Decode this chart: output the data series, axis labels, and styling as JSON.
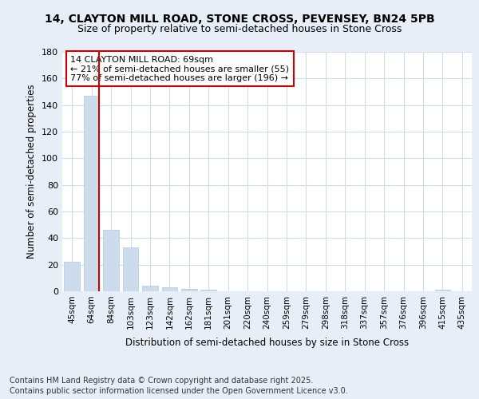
{
  "title_line1": "14, CLAYTON MILL ROAD, STONE CROSS, PEVENSEY, BN24 5PB",
  "title_line2": "Size of property relative to semi-detached houses in Stone Cross",
  "xlabel": "Distribution of semi-detached houses by size in Stone Cross",
  "ylabel": "Number of semi-detached properties",
  "categories": [
    "45sqm",
    "64sqm",
    "84sqm",
    "103sqm",
    "123sqm",
    "142sqm",
    "162sqm",
    "181sqm",
    "201sqm",
    "220sqm",
    "240sqm",
    "259sqm",
    "279sqm",
    "298sqm",
    "318sqm",
    "337sqm",
    "357sqm",
    "376sqm",
    "396sqm",
    "415sqm",
    "435sqm"
  ],
  "values": [
    22,
    147,
    46,
    33,
    4,
    3,
    2,
    1,
    0,
    0,
    0,
    0,
    0,
    0,
    0,
    0,
    0,
    0,
    0,
    1,
    0
  ],
  "bar_color": "#ccdcec",
  "bar_edge_color": "#aec8dc",
  "highlight_index": 1,
  "highlight_line_color": "#cc0000",
  "ylim": [
    0,
    180
  ],
  "yticks": [
    0,
    20,
    40,
    60,
    80,
    100,
    120,
    140,
    160,
    180
  ],
  "annotation_title": "14 CLAYTON MILL ROAD: 69sqm",
  "annotation_line1": "← 21% of semi-detached houses are smaller (55)",
  "annotation_line2": "77% of semi-detached houses are larger (196) →",
  "annotation_box_color": "#ffffff",
  "annotation_box_edge_color": "#cc0000",
  "footer_line1": "Contains HM Land Registry data © Crown copyright and database right 2025.",
  "footer_line2": "Contains public sector information licensed under the Open Government Licence v3.0.",
  "background_color": "#e8eef8",
  "plot_bg_color": "#ffffff",
  "grid_color": "#d0dce8",
  "title_fontsize": 10,
  "subtitle_fontsize": 9,
  "axis_label_fontsize": 8.5,
  "tick_fontsize": 7.5,
  "annotation_fontsize": 8,
  "footer_fontsize": 7
}
